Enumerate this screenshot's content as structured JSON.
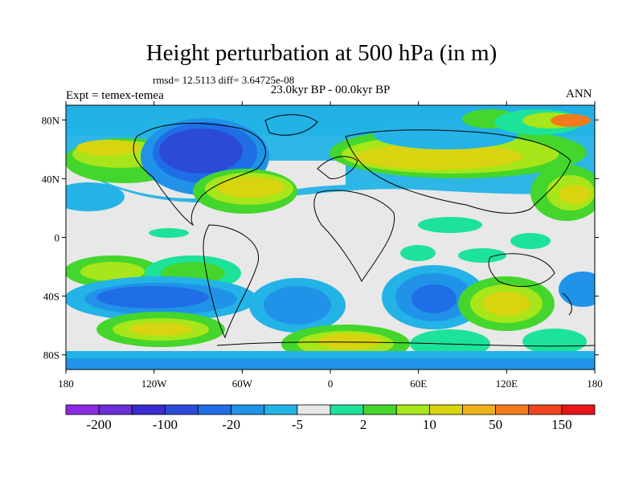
{
  "title": "Height perturbation at 500 hPa (in m)",
  "stats": "rmsd= 12.5113 diff= 3.64725e-08",
  "experiment": "Expt = temex-temea",
  "period": "23.0kyr BP - 00.0kyr BP",
  "season": "ANN",
  "map": {
    "projection": "cylindrical equidistant",
    "lon_range": [
      -180,
      180
    ],
    "lat_range": [
      -90,
      90
    ],
    "lat_ticks": [
      {
        "lat": 80,
        "label": "80N"
      },
      {
        "lat": 40,
        "label": "40N"
      },
      {
        "lat": 0,
        "label": "0"
      },
      {
        "lat": -40,
        "label": "40S"
      },
      {
        "lat": -80,
        "label": "80S"
      }
    ],
    "lon_ticks": [
      {
        "lon": -180,
        "label": "180"
      },
      {
        "lon": -120,
        "label": "120W"
      },
      {
        "lon": -60,
        "label": "60W"
      },
      {
        "lon": 0,
        "label": "0"
      },
      {
        "lon": 60,
        "label": "60E"
      },
      {
        "lon": 120,
        "label": "120E"
      },
      {
        "lon": 180,
        "label": "180"
      }
    ]
  },
  "colorbar": {
    "colors": [
      "#8a2be2",
      "#6a2fd6",
      "#3a2ad0",
      "#2b4ad8",
      "#1f6ee6",
      "#2093e8",
      "#23b3e6",
      "#e8e8e8",
      "#1de29a",
      "#44d62c",
      "#a6e61a",
      "#d8d410",
      "#f0b21a",
      "#f57a1e",
      "#f0441c",
      "#e8141a"
    ],
    "labels": [
      {
        "boundary": 1,
        "text": "-200"
      },
      {
        "boundary": 3,
        "text": "-100"
      },
      {
        "boundary": 5,
        "text": "-20"
      },
      {
        "boundary": 7,
        "text": "-5"
      },
      {
        "boundary": 9,
        "text": "2"
      },
      {
        "boundary": 11,
        "text": "10"
      },
      {
        "boundary": 13,
        "text": "50"
      },
      {
        "boundary": 15,
        "text": "150"
      }
    ]
  }
}
